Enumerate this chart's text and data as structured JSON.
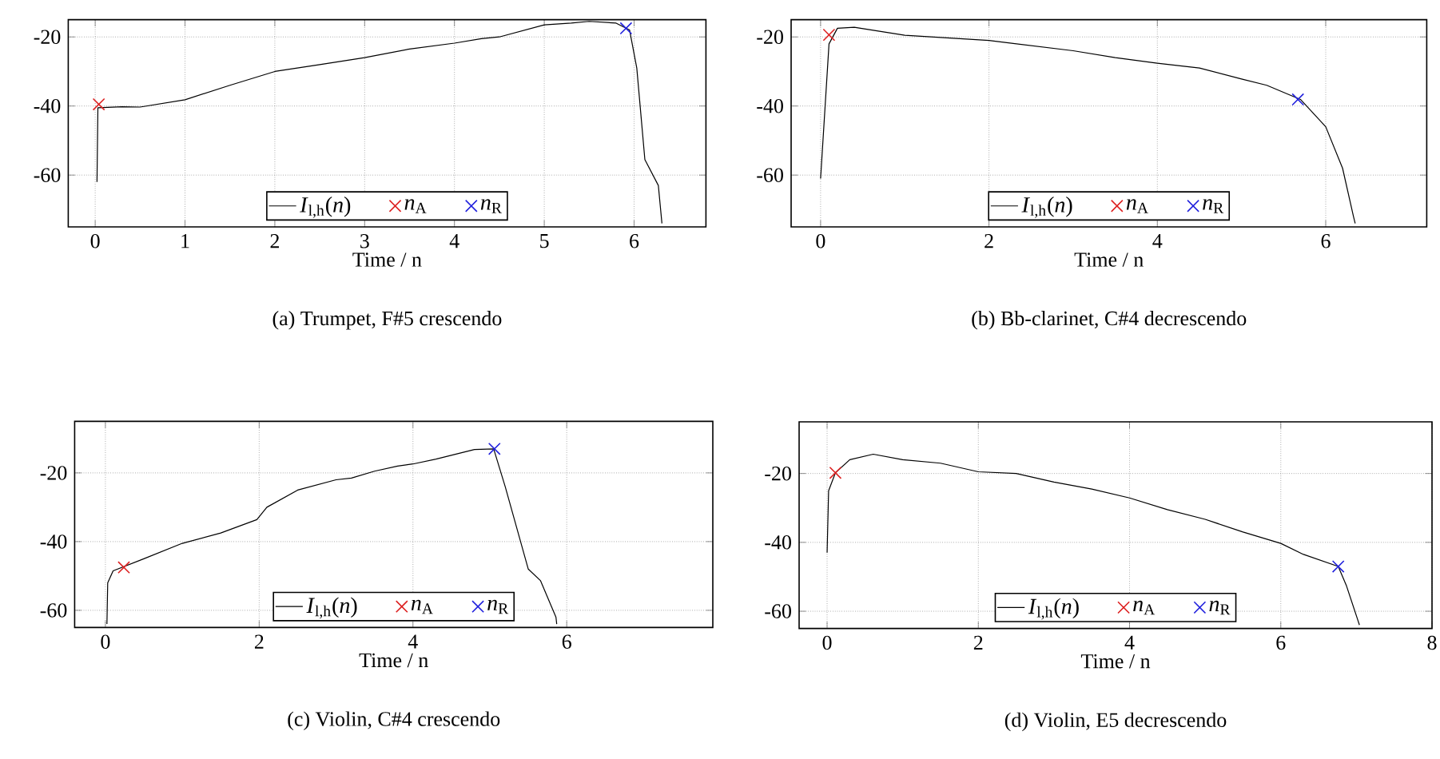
{
  "chart_data": [
    {
      "type": "line",
      "title": "(a) Trumpet, F#5 crescendo",
      "xlabel": "Time / n",
      "xlim": [
        -0.3,
        6.8
      ],
      "ylim": [
        -75,
        -15
      ],
      "xticks": [
        0,
        1,
        2,
        3,
        4,
        5,
        6
      ],
      "yticks": [
        -60,
        -40,
        -20
      ],
      "grid": true,
      "legend": "bottom",
      "series": [
        {
          "name": "*I*$_{l,h}$(*n*)",
          "color": "#000000",
          "marker": "none",
          "line_style": "solid",
          "x": [
            0.02,
            0.03,
            0.3,
            0.5,
            1.0,
            1.5,
            2.0,
            2.5,
            3.0,
            3.5,
            4.0,
            4.3,
            4.5,
            5.0,
            5.3,
            5.5,
            5.8,
            5.95,
            6.03,
            6.12,
            6.27,
            6.31
          ],
          "values": [
            -62,
            -40.5,
            -40.2,
            -40.3,
            -38.2,
            -34,
            -30,
            -28,
            -26,
            -23.5,
            -21.8,
            -20.5,
            -20,
            -16.5,
            -16,
            -15.5,
            -16,
            -18,
            -29,
            -55.5,
            -63,
            -74
          ]
        },
        {
          "name": "*n*$_{A}$",
          "type": "scatter",
          "color": "#dd2020",
          "marker": "cross",
          "x": [
            0.04
          ],
          "values": [
            -39.5
          ]
        },
        {
          "name": "*n*$_{R}$",
          "type": "scatter",
          "color": "#2020dd",
          "marker": "cross",
          "x": [
            5.91
          ],
          "values": [
            -17.5
          ]
        }
      ]
    },
    {
      "type": "line",
      "title": "(b) Bb-clarinet, C#4 decrescendo",
      "xlabel": "Time / n",
      "xlim": [
        -0.35,
        7.2
      ],
      "ylim": [
        -75,
        -15
      ],
      "xticks": [
        0,
        2,
        4,
        6
      ],
      "yticks": [
        -60,
        -40,
        -20
      ],
      "grid": true,
      "legend": "bottom",
      "series": [
        {
          "name": "*I*$_{l,h}$(*n*)",
          "color": "#000000",
          "marker": "none",
          "line_style": "solid",
          "x": [
            0.0,
            0.1,
            0.2,
            0.4,
            1.0,
            2.0,
            3.0,
            3.5,
            4.0,
            4.5,
            5.0,
            5.3,
            5.7,
            6.0,
            6.2,
            6.33,
            6.35
          ],
          "values": [
            -61,
            -22,
            -17.5,
            -17.2,
            -19.5,
            -21,
            -24,
            -26,
            -27.6,
            -29,
            -32.2,
            -34,
            -38.1,
            -46,
            -58,
            -72,
            -74
          ]
        },
        {
          "name": "*n*$_{A}$",
          "type": "scatter",
          "color": "#dd2020",
          "marker": "cross",
          "x": [
            0.1
          ],
          "values": [
            -19.4
          ]
        },
        {
          "name": "*n*$_{R}$",
          "type": "scatter",
          "color": "#2020dd",
          "marker": "cross",
          "x": [
            5.67
          ],
          "values": [
            -38.1
          ]
        }
      ]
    },
    {
      "type": "line",
      "title": "(c) Violin, C#4 crescendo",
      "xlabel": "Time / n",
      "xlim": [
        -0.4,
        7.9
      ],
      "ylim": [
        -65,
        -5
      ],
      "xticks": [
        0,
        2,
        4,
        6
      ],
      "yticks": [
        -60,
        -40,
        -20
      ],
      "grid": true,
      "legend": "bottom",
      "series": [
        {
          "name": "*I*$_{l,h}$(*n*)",
          "color": "#000000",
          "marker": "none",
          "line_style": "solid",
          "x": [
            0.02,
            0.03,
            0.1,
            0.5,
            1.0,
            1.5,
            1.97,
            2.1,
            2.5,
            3.0,
            3.2,
            3.5,
            3.8,
            4.0,
            4.3,
            4.8,
            5.05,
            5.2,
            5.4,
            5.5,
            5.66,
            5.86,
            5.87
          ],
          "values": [
            -64,
            -52,
            -48.5,
            -45,
            -40.5,
            -37.5,
            -33.6,
            -30,
            -25,
            -22,
            -21.5,
            -19.5,
            -18,
            -17.4,
            -16,
            -13.2,
            -13,
            -24,
            -40,
            -48,
            -51.4,
            -62,
            -64
          ]
        },
        {
          "name": "*n*$_{A}$",
          "type": "scatter",
          "color": "#dd2020",
          "marker": "cross",
          "x": [
            0.24
          ],
          "values": [
            -47.5
          ]
        },
        {
          "name": "*n*$_{R}$",
          "type": "scatter",
          "color": "#2020dd",
          "marker": "cross",
          "x": [
            5.06
          ],
          "values": [
            -13
          ]
        }
      ]
    },
    {
      "type": "line",
      "title": "(d) Violin, E5 decrescendo",
      "xlabel": "Time / n",
      "xlim": [
        -0.37,
        8
      ],
      "ylim": [
        -65,
        -5
      ],
      "xticks": [
        0,
        2,
        4,
        6,
        8
      ],
      "yticks": [
        -60,
        -40,
        -20
      ],
      "grid": true,
      "legend": "bottom",
      "series": [
        {
          "name": "*I*$_{l,h}$(*n*)",
          "color": "#000000",
          "marker": "none",
          "line_style": "solid",
          "x": [
            0.0,
            0.02,
            0.11,
            0.3,
            0.61,
            1.0,
            1.5,
            2.0,
            2.5,
            3.0,
            3.5,
            4.0,
            4.5,
            5.0,
            5.5,
            6.0,
            6.3,
            6.76,
            6.87,
            7.01,
            7.04
          ],
          "values": [
            -43,
            -25,
            -19.8,
            -16,
            -14.4,
            -16,
            -17,
            -19.5,
            -20,
            -22.5,
            -24.5,
            -27.1,
            -30.5,
            -33.3,
            -37,
            -40.3,
            -43.5,
            -47,
            -52.7,
            -62,
            -64
          ]
        },
        {
          "name": "*n*$_{A}$",
          "type": "scatter",
          "color": "#dd2020",
          "marker": "cross",
          "x": [
            0.11
          ],
          "values": [
            -19.8
          ]
        },
        {
          "name": "*n*$_{R}$",
          "type": "scatter",
          "color": "#2020dd",
          "marker": "cross",
          "x": [
            6.76
          ],
          "values": [
            -47
          ]
        }
      ]
    }
  ]
}
